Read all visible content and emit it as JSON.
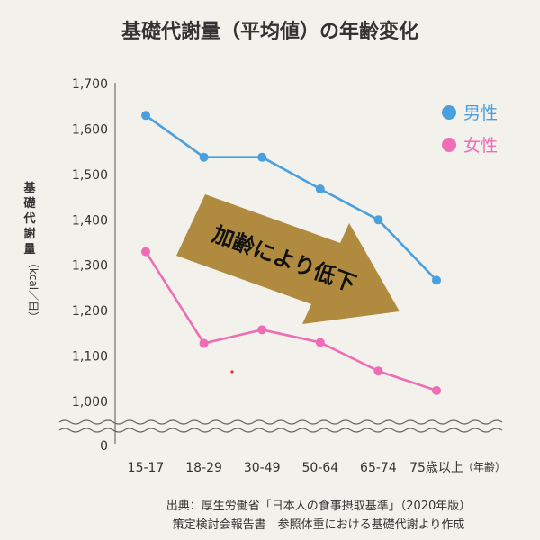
{
  "chart_data": {
    "type": "line",
    "title": "基礎代謝量（平均値）の年齢変化",
    "ylabel_chars": [
      "基",
      "礎",
      "代",
      "謝",
      "量"
    ],
    "ylabel_unit": "（kcal／日）",
    "categories": [
      "15-17",
      "18-29",
      "30-49",
      "50-64",
      "65-74",
      "75歳以上"
    ],
    "x_unit": "（年齢）",
    "y_ticks": [
      "1,700",
      "1,600",
      "1,500",
      "1,400",
      "1,300",
      "1,200",
      "1,100",
      "1,000"
    ],
    "y_zero": "0",
    "ylim": [
      1000,
      1700
    ],
    "axis_break": true,
    "grid": false,
    "legend_position": "top-right",
    "series": [
      {
        "name": "男性",
        "color": "#4a9fde",
        "values": [
          1630,
          1538,
          1538,
          1468,
          1400,
          1267
        ]
      },
      {
        "name": "女性",
        "color": "#ef6db4",
        "values": [
          1330,
          1128,
          1158,
          1130,
          1067,
          1024
        ]
      }
    ],
    "annotation": "加齢により低下",
    "annotation_color": "#b08a3e"
  },
  "source": {
    "line1": "出典：厚生労働省「日本人の食事摂取基準」（2020年版）",
    "line2": "策定検討会報告書　参照体重における基礎代謝より作成"
  }
}
